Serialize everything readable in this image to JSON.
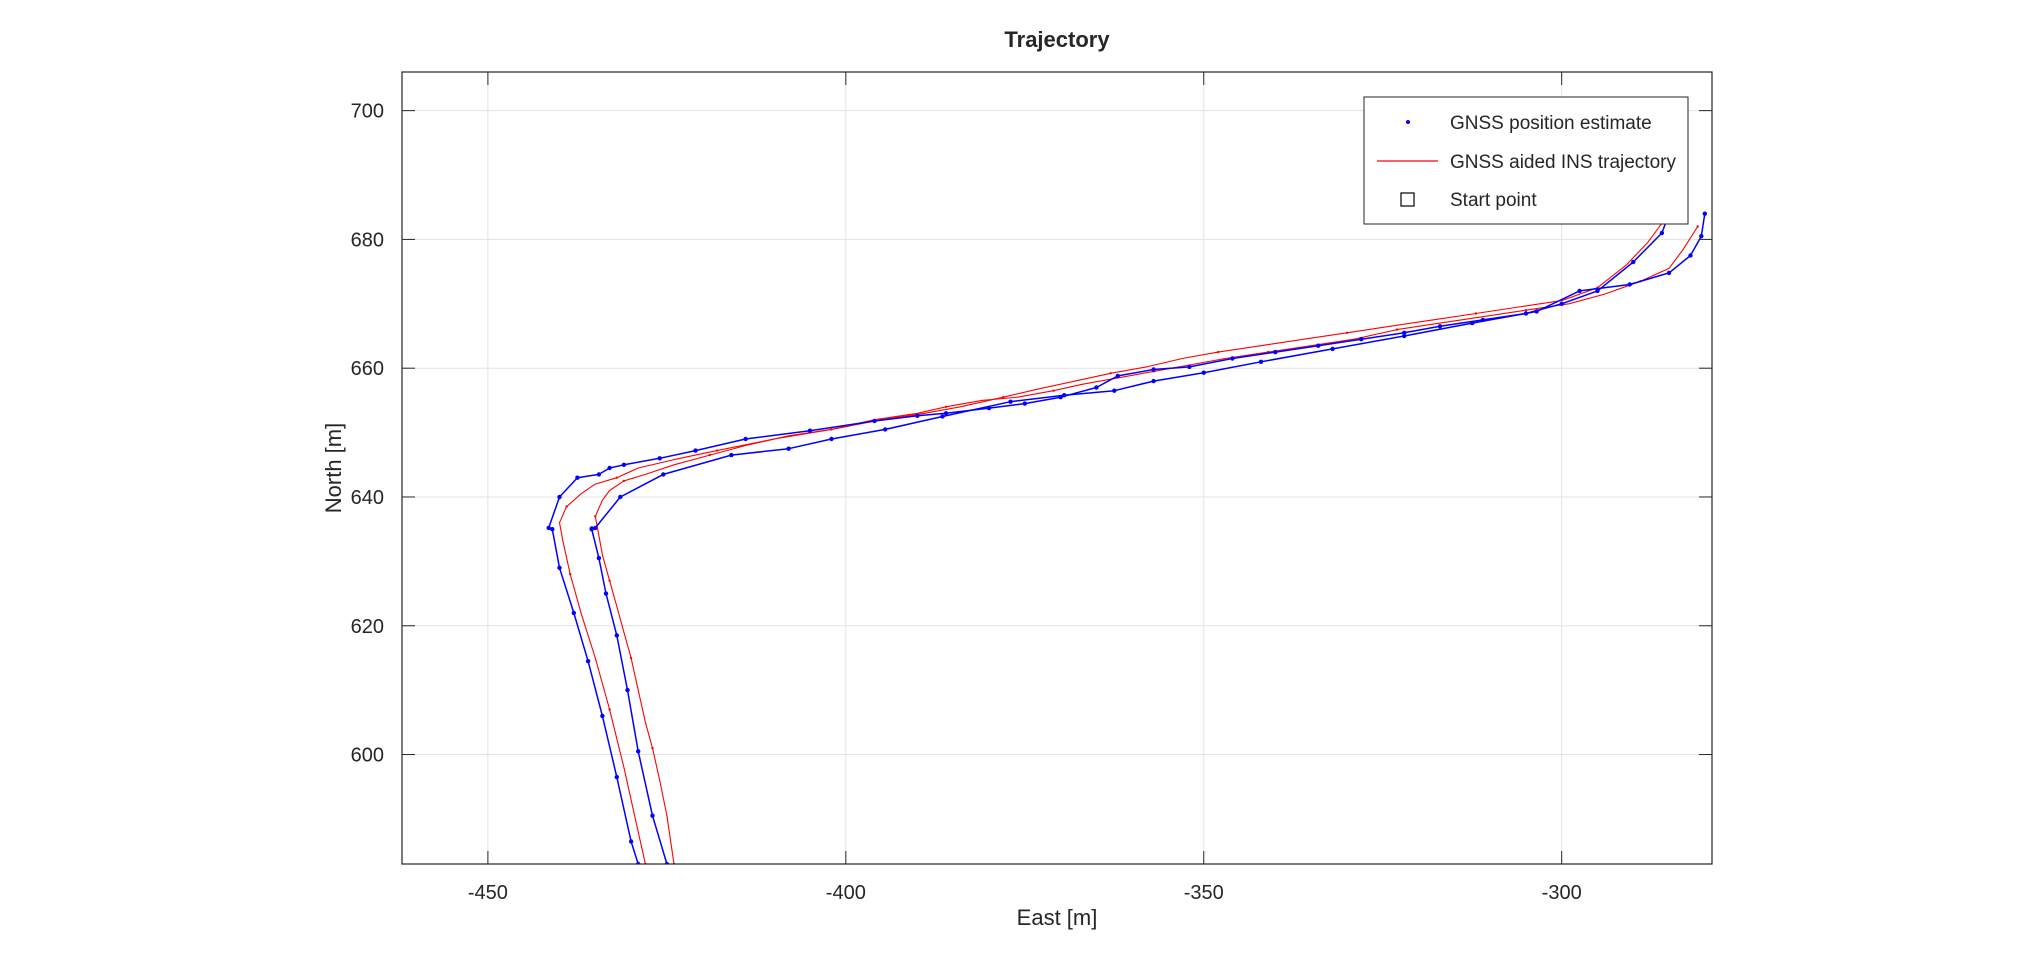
{
  "chart_data": {
    "type": "line",
    "title": "Trajectory",
    "xlabel": "East [m]",
    "ylabel": "North [m]",
    "xlim": [
      -462,
      -279
    ],
    "ylim": [
      583,
      706
    ],
    "xticks": [
      -450,
      -400,
      -350,
      -300
    ],
    "yticks": [
      600,
      620,
      640,
      660,
      680,
      700
    ],
    "xtick_labels": [
      "-450",
      "-400",
      "-350",
      "-300"
    ],
    "ytick_labels": [
      "600",
      "620",
      "640",
      "660",
      "680",
      "700"
    ],
    "grid": true,
    "legend_position": "top-right",
    "legend": [
      {
        "label": "GNSS position estimate",
        "marker": "dot",
        "color": "#0000ff"
      },
      {
        "label": "GNSS aided INS trajectory",
        "marker": "line",
        "color": "#ff0000"
      },
      {
        "label": "Start point",
        "marker": "square",
        "color": "#000000"
      }
    ],
    "series": [
      {
        "name": "GNSS position estimate",
        "color": "#0000ff",
        "x": [
          -425,
          -427,
          -429,
          -430.5,
          -432,
          -433.5,
          -434.5,
          -435.5,
          -435.5,
          -435,
          -431.5,
          -425.5,
          -416,
          -408,
          -402,
          -394.5,
          -386.5,
          -377,
          -369.5,
          -362.5,
          -357,
          -350,
          -342,
          -332,
          -322,
          -312.5,
          -303.5,
          -297.5,
          -290.5,
          -285,
          -282,
          -280.5,
          -280
        ],
        "y": [
          583,
          590.5,
          600.5,
          610,
          618.5,
          625,
          630.5,
          635,
          635.1,
          635.2,
          640,
          643.5,
          646.5,
          647.5,
          649,
          650.5,
          652.5,
          654.8,
          655.8,
          656.5,
          658,
          659.3,
          661,
          663,
          665,
          667,
          668.8,
          672,
          673,
          674.8,
          677.5,
          680.5,
          684
        ],
        "note_points": "outer-segment"
      },
      {
        "name": "GNSS position estimate",
        "color": "#0000ff",
        "x": [
          -429,
          -430,
          -432,
          -434,
          -436,
          -438,
          -440,
          -441,
          -441.5,
          -440,
          -437.5,
          -434.5,
          -433,
          -431,
          -426,
          -421,
          -414,
          -405,
          -396,
          -390,
          -386,
          -380,
          -375,
          -370,
          -365,
          -362,
          -357,
          -352,
          -346,
          -340,
          -334,
          -328,
          -322,
          -317,
          -311,
          -305,
          -300,
          -295,
          -290,
          -286,
          -285
        ],
        "y": [
          583,
          586.5,
          596.5,
          606,
          614.5,
          622,
          629,
          635,
          635.2,
          640,
          643,
          643.5,
          644.5,
          645,
          646,
          647.2,
          649,
          650.3,
          651.8,
          652.6,
          653,
          653.8,
          654.5,
          655.5,
          657,
          658.8,
          659.8,
          660.2,
          661.5,
          662.5,
          663.5,
          664.5,
          665.5,
          666.5,
          667.5,
          668.5,
          670,
          672,
          676.5,
          681,
          684
        ]
      },
      {
        "name": "GNSS aided INS trajectory",
        "color": "#ff0000",
        "x": [
          -424,
          -425,
          -426,
          -427,
          -428,
          -429,
          -430,
          -431,
          -432,
          -433,
          -434,
          -434.5,
          -435,
          -434,
          -433,
          -431,
          -428,
          -424,
          -419,
          -414,
          -408,
          -402,
          -396,
          -390,
          -386,
          -381,
          -376,
          -371,
          -367,
          -362,
          -357,
          -352,
          -347,
          -341,
          -335,
          -329,
          -323,
          -317,
          -311,
          -305,
          -299,
          -294,
          -289,
          -285,
          -283,
          -281
        ],
        "y": [
          583,
          590.5,
          596,
          601,
          605,
          610,
          615,
          619,
          623,
          627,
          631,
          634,
          637,
          639.5,
          641,
          642.5,
          643.5,
          645,
          646.5,
          648,
          649.5,
          650.5,
          652,
          653,
          654,
          655,
          655.5,
          656.5,
          657.5,
          658.5,
          659.5,
          660.5,
          661.5,
          662.5,
          663.5,
          664.5,
          666,
          667,
          668,
          669,
          670,
          671.5,
          673.5,
          675.5,
          678.5,
          682
        ]
      },
      {
        "name": "GNSS aided INS trajectory",
        "color": "#ff0000",
        "x": [
          -428,
          -429,
          -431,
          -433,
          -435,
          -437,
          -438.5,
          -439.5,
          -440,
          -439,
          -437,
          -435,
          -432,
          -429,
          -424,
          -418,
          -410,
          -402,
          -395,
          -389,
          -384,
          -378,
          -373,
          -368,
          -363,
          -358,
          -353,
          -348,
          -342,
          -336,
          -330,
          -324,
          -318,
          -312,
          -306,
          -300,
          -295,
          -291,
          -288,
          -286,
          -284
        ],
        "y": [
          583,
          588,
          598,
          607,
          615,
          622,
          628,
          633,
          636,
          638.5,
          640.5,
          642,
          643,
          644.5,
          645.8,
          647.2,
          649,
          650.5,
          652,
          653,
          654,
          655.5,
          656.8,
          658,
          659.2,
          660.2,
          661.5,
          662.5,
          663.5,
          664.5,
          665.5,
          666.5,
          667.5,
          668.5,
          669.5,
          670.5,
          672.5,
          676,
          679.5,
          682.5,
          684
        ]
      }
    ]
  }
}
